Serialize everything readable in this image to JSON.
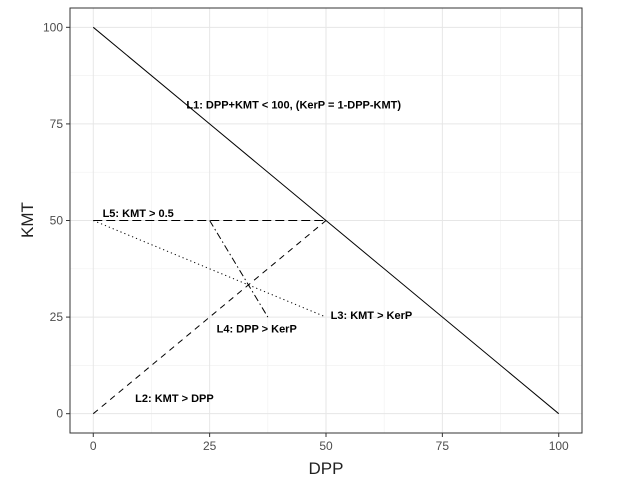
{
  "chart_data": {
    "type": "line",
    "xlabel": "DPP",
    "ylabel": "KMT",
    "xlim": [
      -5,
      105
    ],
    "ylim": [
      -5,
      105
    ],
    "x_ticks": [
      0,
      25,
      50,
      75,
      100
    ],
    "y_ticks": [
      0,
      25,
      50,
      75,
      100
    ],
    "x_tick_labels": [
      "0",
      "25",
      "50",
      "75",
      "100"
    ],
    "y_tick_labels": [
      "0",
      "25",
      "50",
      "75",
      "100"
    ],
    "grid": true,
    "legend": "none",
    "series": [
      {
        "line_style": "solid",
        "x": [
          0,
          100
        ],
        "y": [
          100,
          0
        ]
      },
      {
        "line_style": "dashed",
        "x": [
          0,
          50
        ],
        "y": [
          0,
          50
        ]
      },
      {
        "line_style": "dotted",
        "x": [
          0,
          50
        ],
        "y": [
          50,
          25
        ]
      },
      {
        "line_style": "dashdot",
        "x": [
          25,
          37.5
        ],
        "y": [
          50,
          25
        ]
      },
      {
        "line_style": "longdash",
        "x": [
          0,
          50
        ],
        "y": [
          50,
          50
        ]
      }
    ],
    "annotations": [
      {
        "text": "L1: DPP+KMT < 100, (KerP = 1-DPP-KMT)",
        "x": 20,
        "y": 80
      },
      {
        "text": "L2: KMT > DPP",
        "x": 9,
        "y": 4
      },
      {
        "text": "L3: KMT > KerP",
        "x": 51,
        "y": 25.5
      },
      {
        "text": "L4: DPP > KerP",
        "x": 26.5,
        "y": 22
      },
      {
        "text": "L5: KMT > 0.5",
        "x": 2,
        "y": 52
      }
    ]
  }
}
